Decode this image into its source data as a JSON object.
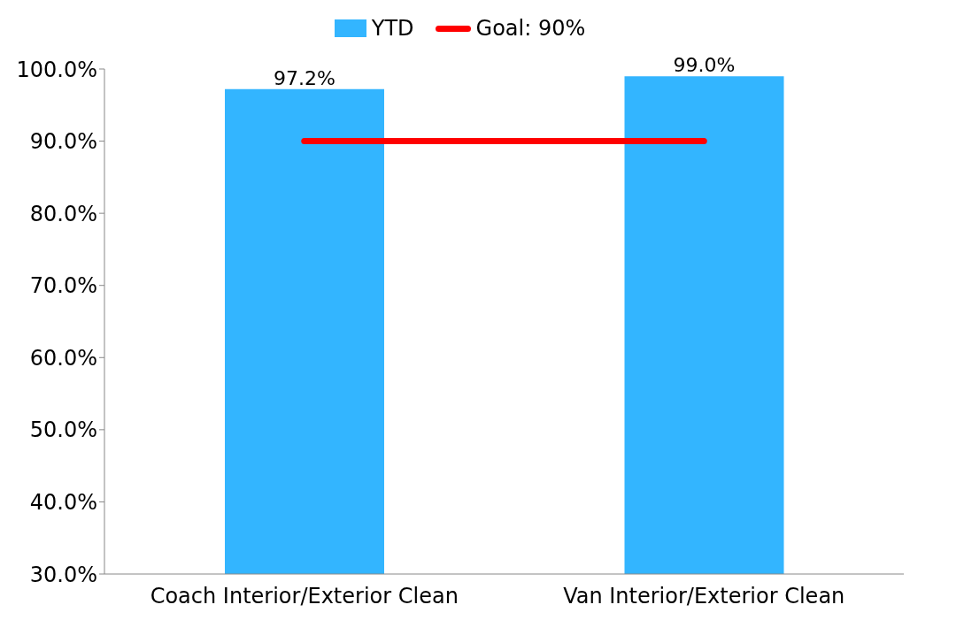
{
  "chart_data": {
    "type": "bar",
    "categories": [
      "Coach Interior/Exterior Clean",
      "Van Interior/Exterior Clean"
    ],
    "series": [
      {
        "name": "YTD",
        "color": "#33b5ff",
        "values": [
          97.2,
          99.0
        ],
        "value_labels": [
          "97.2%",
          "99.0%"
        ]
      },
      {
        "name": "Goal: 90%",
        "type": "line",
        "color": "#ff0000",
        "values": [
          90,
          90
        ],
        "marker": "none"
      }
    ],
    "ylim": [
      30,
      100
    ],
    "yticks": [
      {
        "value": 30,
        "label": "30.0%"
      },
      {
        "value": 40,
        "label": "40.0%"
      },
      {
        "value": 50,
        "label": "50.0%"
      },
      {
        "value": 60,
        "label": "60.0%"
      },
      {
        "value": 70,
        "label": "70.0%"
      },
      {
        "value": 80,
        "label": "80.0%"
      },
      {
        "value": 90,
        "label": "90.0%"
      },
      {
        "value": 100,
        "label": "100.0%"
      }
    ],
    "grid": false,
    "legend": "top"
  }
}
